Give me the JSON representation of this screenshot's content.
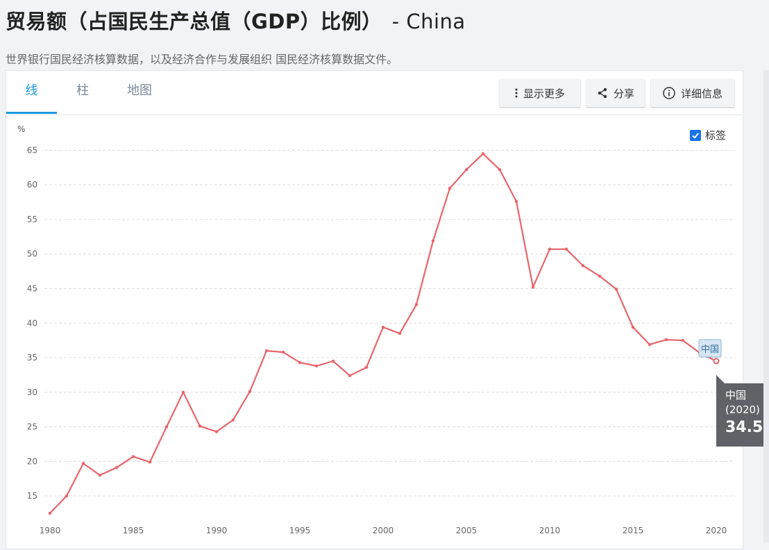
{
  "page": {
    "title": "贸易额（占国民生产总值（GDP）比例）",
    "title_suffix": "- China",
    "subtitle": "世界银行国民经济核算数据，以及经济合作与发展组织 国民经济核算数据文件。"
  },
  "tabs": [
    {
      "label": "线",
      "active": true
    },
    {
      "label": "柱",
      "active": false
    },
    {
      "label": "地图",
      "active": false
    }
  ],
  "toolbar": {
    "more_label": "显示更多",
    "share_label": "分享",
    "details_label": "详细信息"
  },
  "labels_toggle": {
    "label": "标签",
    "checked": true
  },
  "colors": {
    "series": "#e8646b",
    "accent": "#1a9be0",
    "tooltip_bg": "#5f6367"
  },
  "icons": {
    "more": "vertical-dots-icon",
    "share": "share-icon",
    "details": "info-icon",
    "checkbox": "checkmark-icon"
  },
  "tooltip": {
    "name": "中国",
    "year": "(2020)",
    "value": "34.50"
  },
  "chart_data": {
    "type": "line",
    "ylabel": "%",
    "xlim": [
      1980,
      2020
    ],
    "ylim": [
      12,
      66
    ],
    "yticks": [
      15,
      20,
      25,
      30,
      35,
      40,
      45,
      50,
      55,
      60,
      65
    ],
    "xticks": [
      1980,
      1985,
      1990,
      1995,
      2000,
      2005,
      2010,
      2015,
      2020
    ],
    "grid": true,
    "series": [
      {
        "name": "中国",
        "x": [
          1980,
          1981,
          1982,
          1983,
          1984,
          1985,
          1986,
          1987,
          1988,
          1989,
          1990,
          1991,
          1992,
          1993,
          1994,
          1995,
          1996,
          1997,
          1998,
          1999,
          2000,
          2001,
          2002,
          2003,
          2004,
          2005,
          2006,
          2007,
          2008,
          2009,
          2010,
          2011,
          2012,
          2013,
          2014,
          2015,
          2016,
          2017,
          2018,
          2019,
          2020
        ],
        "y": [
          12.5,
          15.0,
          19.7,
          18.0,
          19.1,
          20.7,
          19.9,
          25.0,
          30.0,
          25.1,
          24.3,
          26.0,
          30.1,
          36.0,
          35.8,
          34.3,
          33.8,
          34.5,
          32.4,
          33.6,
          39.4,
          38.5,
          42.7,
          51.9,
          59.5,
          62.2,
          64.5,
          62.2,
          57.6,
          45.2,
          50.7,
          50.7,
          48.3,
          46.8,
          44.9,
          39.4,
          36.9,
          37.6,
          37.5,
          35.7,
          34.5
        ]
      }
    ],
    "end_label": "中国"
  }
}
